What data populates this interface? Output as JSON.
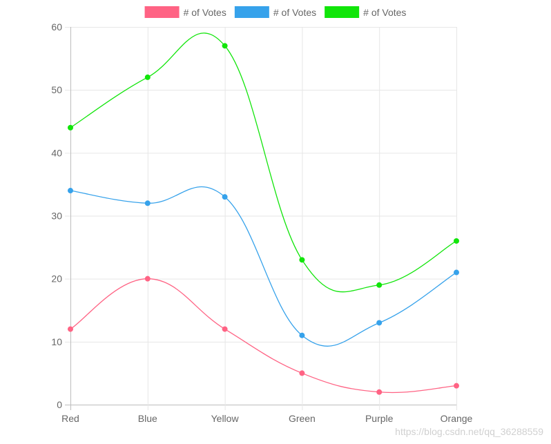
{
  "chart_data": {
    "type": "line",
    "categories": [
      "Red",
      "Blue",
      "Yellow",
      "Green",
      "Purple",
      "Orange"
    ],
    "series": [
      {
        "name": "# of Votes",
        "color": "#ff6384",
        "values": [
          12,
          20,
          12,
          5,
          2,
          3
        ]
      },
      {
        "name": "# of Votes",
        "color": "#36a2eb",
        "values": [
          34,
          32,
          33,
          11,
          13,
          21
        ]
      },
      {
        "name": "# of Votes",
        "color": "#11e50a",
        "values": [
          44,
          52,
          57,
          23,
          19,
          26
        ]
      }
    ],
    "y_ticks": [
      0,
      10,
      20,
      30,
      40,
      50,
      60
    ],
    "ylim": [
      0,
      60
    ],
    "grid": true,
    "legend_position": "top",
    "title": "",
    "xlabel": "",
    "ylabel": ""
  },
  "watermark": "https://blog.csdn.net/qq_36288559"
}
